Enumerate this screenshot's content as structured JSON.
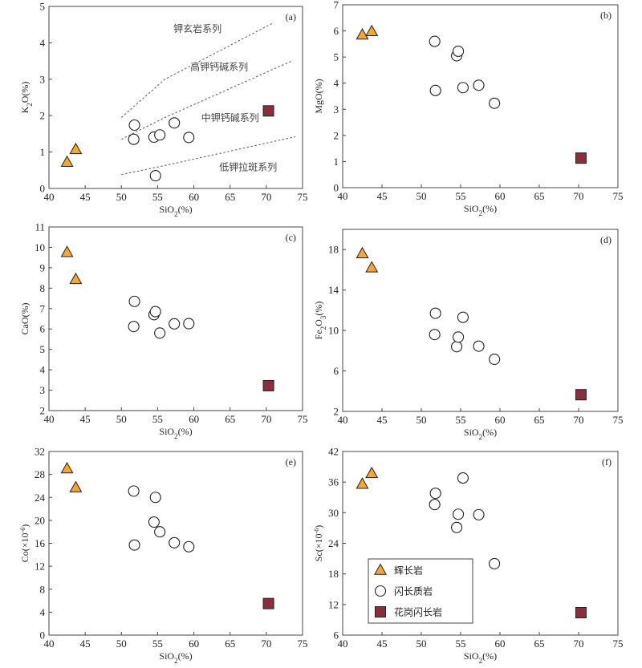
{
  "colors": {
    "gabbro": "#f4a533",
    "diorite": "#ffffff",
    "granodiorite": "#8b2e3c",
    "stroke": "#222222"
  },
  "chart_data": [
    {
      "id": "a",
      "tag": "(a)",
      "type": "scatter",
      "xlabel": "SiO2(%)",
      "ylabel": "K2O(%)",
      "xlim": [
        40,
        75
      ],
      "ylim": [
        0,
        5
      ],
      "xticks": [
        40,
        45,
        50,
        55,
        60,
        65,
        70,
        75
      ],
      "yticks": [
        0,
        1,
        2,
        3,
        4,
        5
      ],
      "series": [
        {
          "name": "辉长岩",
          "marker": "triangle",
          "x": [
            42.5,
            43.7
          ],
          "y": [
            0.72,
            1.07
          ]
        },
        {
          "name": "闪长质岩",
          "marker": "circle",
          "x": [
            51.7,
            51.8,
            54.5,
            55.3,
            57.3,
            59.3,
            54.7
          ],
          "y": [
            1.35,
            1.74,
            1.41,
            1.47,
            1.8,
            1.4,
            0.35
          ]
        },
        {
          "name": "花岗闪长岩",
          "marker": "square",
          "x": [
            70.3
          ],
          "y": [
            2.13
          ]
        }
      ],
      "divider_lines": [
        [
          [
            50,
            1.95
          ],
          [
            56,
            3.0
          ],
          [
            71,
            4.55
          ]
        ],
        [
          [
            50,
            1.35
          ],
          [
            56,
            1.95
          ],
          [
            73.5,
            3.5
          ]
        ],
        [
          [
            50,
            0.38
          ],
          [
            56,
            0.63
          ],
          [
            74,
            1.42
          ]
        ]
      ],
      "zone_labels": [
        {
          "text": "钾玄岩系列",
          "x": 60.5,
          "y": 4.3
        },
        {
          "text": "高钾钙碱系列",
          "x": 63.5,
          "y": 3.25
        },
        {
          "text": "中钾钙碱系列",
          "x": 65.0,
          "y": 1.85
        },
        {
          "text": "低钾拉斑系列",
          "x": 67.5,
          "y": 0.5
        }
      ]
    },
    {
      "id": "b",
      "tag": "(b)",
      "type": "scatter",
      "xlabel": "SiO2(%)",
      "ylabel": "MgO(%)",
      "xlim": [
        40,
        75
      ],
      "ylim": [
        0,
        7
      ],
      "xticks": [
        40,
        45,
        50,
        55,
        60,
        65,
        70,
        75
      ],
      "yticks": [
        0,
        1,
        2,
        3,
        4,
        5,
        6,
        7
      ],
      "series": [
        {
          "name": "辉长岩",
          "marker": "triangle",
          "x": [
            42.5,
            43.7
          ],
          "y": [
            5.85,
            5.98
          ]
        },
        {
          "name": "闪长质岩",
          "marker": "circle",
          "x": [
            51.7,
            51.8,
            54.5,
            54.7,
            55.3,
            57.3,
            59.3
          ],
          "y": [
            5.6,
            3.72,
            5.05,
            5.22,
            3.83,
            3.92,
            3.23
          ]
        },
        {
          "name": "花岗闪长岩",
          "marker": "square",
          "x": [
            70.3
          ],
          "y": [
            1.13
          ]
        }
      ]
    },
    {
      "id": "c",
      "tag": "(c)",
      "type": "scatter",
      "xlabel": "SiO2(%)",
      "ylabel": "CaO(%)",
      "xlim": [
        40,
        75
      ],
      "ylim": [
        2,
        11
      ],
      "xticks": [
        40,
        45,
        50,
        55,
        60,
        65,
        70,
        75
      ],
      "yticks": [
        2,
        3,
        4,
        5,
        6,
        7,
        8,
        9,
        10,
        11
      ],
      "series": [
        {
          "name": "辉长岩",
          "marker": "triangle",
          "x": [
            42.5,
            43.7
          ],
          "y": [
            9.75,
            8.43
          ]
        },
        {
          "name": "闪长质岩",
          "marker": "circle",
          "x": [
            51.7,
            51.8,
            54.5,
            54.7,
            55.3,
            57.3,
            59.3
          ],
          "y": [
            6.12,
            7.35,
            6.7,
            6.85,
            5.8,
            6.25,
            6.26
          ]
        },
        {
          "name": "花岗闪长岩",
          "marker": "square",
          "x": [
            70.3
          ],
          "y": [
            3.22
          ]
        }
      ]
    },
    {
      "id": "d",
      "tag": "(d)",
      "type": "scatter",
      "xlabel": "SiO2(%)",
      "ylabel": "Fe2O3(%)",
      "xlim": [
        40,
        75
      ],
      "ylim": [
        2,
        20
      ],
      "xticks": [
        40,
        45,
        50,
        55,
        60,
        65,
        70,
        75
      ],
      "yticks": [
        2,
        6,
        10,
        14,
        18
      ],
      "series": [
        {
          "name": "辉长岩",
          "marker": "triangle",
          "x": [
            42.5,
            43.7
          ],
          "y": [
            17.6,
            16.2
          ]
        },
        {
          "name": "闪长质岩",
          "marker": "circle",
          "x": [
            51.7,
            51.8,
            54.5,
            54.7,
            55.3,
            57.3,
            59.3
          ],
          "y": [
            9.6,
            11.7,
            8.4,
            9.35,
            11.3,
            8.45,
            7.15
          ]
        },
        {
          "name": "花岗闪长岩",
          "marker": "square",
          "x": [
            70.3
          ],
          "y": [
            3.65
          ]
        }
      ]
    },
    {
      "id": "e",
      "tag": "(e)",
      "type": "scatter",
      "xlabel": "SiO2(%)",
      "ylabel": "Co(×10-6)",
      "xlim": [
        40,
        75
      ],
      "ylim": [
        0,
        32
      ],
      "xticks": [
        40,
        45,
        50,
        55,
        60,
        65,
        70,
        75
      ],
      "yticks": [
        0,
        4,
        8,
        12,
        16,
        20,
        24,
        28,
        32
      ],
      "series": [
        {
          "name": "辉长岩",
          "marker": "triangle",
          "x": [
            42.5,
            43.7
          ],
          "y": [
            29.0,
            25.7
          ]
        },
        {
          "name": "闪长质岩",
          "marker": "circle",
          "x": [
            51.7,
            51.8,
            54.5,
            54.7,
            55.3,
            57.3,
            59.3
          ],
          "y": [
            25.1,
            15.7,
            19.7,
            24.0,
            18.0,
            16.1,
            15.4
          ]
        },
        {
          "name": "花岗闪长岩",
          "marker": "square",
          "x": [
            70.3
          ],
          "y": [
            5.5
          ]
        }
      ]
    },
    {
      "id": "f",
      "tag": "(f)",
      "type": "scatter",
      "xlabel": "SiO2(%)",
      "ylabel": "Sc(×10-6)",
      "xlim": [
        40,
        75
      ],
      "ylim": [
        6,
        42
      ],
      "xticks": [
        40,
        45,
        50,
        55,
        60,
        65,
        70,
        75
      ],
      "yticks": [
        6,
        12,
        18,
        24,
        30,
        36,
        42
      ],
      "series": [
        {
          "name": "辉长岩",
          "marker": "triangle",
          "x": [
            42.5,
            43.7
          ],
          "y": [
            35.6,
            37.7
          ]
        },
        {
          "name": "闪长质岩",
          "marker": "circle",
          "x": [
            51.7,
            51.8,
            54.5,
            54.7,
            55.3,
            57.3,
            59.3
          ],
          "y": [
            31.6,
            33.8,
            27.1,
            29.7,
            36.8,
            29.6,
            20.0
          ]
        },
        {
          "name": "花岗闪长岩",
          "marker": "square",
          "x": [
            70.3
          ],
          "y": [
            10.4
          ]
        }
      ],
      "legend": {
        "placement": "bottom-left",
        "entries": [
          {
            "marker": "triangle",
            "label": "辉长岩"
          },
          {
            "marker": "circle",
            "label": "闪长质岩"
          },
          {
            "marker": "square",
            "label": "花岗闪长岩"
          }
        ]
      }
    }
  ]
}
